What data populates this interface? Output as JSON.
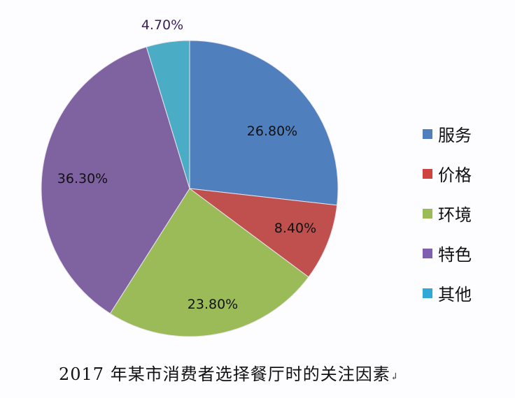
{
  "chart_data": {
    "type": "pie",
    "title": "2017 年某市消费者选择餐厅时的关注因素",
    "categories": [
      "服务",
      "价格",
      "环境",
      "特色",
      "其他"
    ],
    "values": [
      26.8,
      8.4,
      23.8,
      36.3,
      4.7
    ],
    "labels": [
      "26.80%",
      "8.40%",
      "23.80%",
      "36.30%",
      "4.70%"
    ],
    "colors": [
      "#4f7fbd",
      "#c0504d",
      "#9bbb59",
      "#7f63a1",
      "#4bacc6"
    ],
    "start_angle_deg": 0,
    "direction": "clockwise",
    "legend_position": "right"
  },
  "caption": {
    "text": "2017 年某市消费者选择餐厅时的关注因素",
    "mark": "↲"
  },
  "legend": {
    "items": [
      {
        "label": "服务",
        "color": "#4f7fbd"
      },
      {
        "label": "价格",
        "color": "#c0504d"
      },
      {
        "label": "环境",
        "color": "#9bbb59"
      },
      {
        "label": "特色",
        "color": "#7f63a1"
      },
      {
        "label": "其他",
        "color": "#4bacc6"
      }
    ]
  }
}
